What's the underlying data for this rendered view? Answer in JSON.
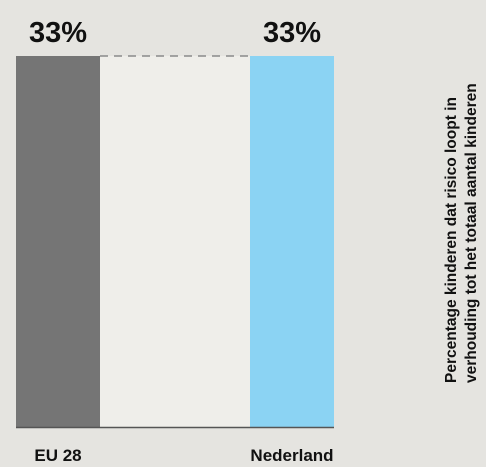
{
  "chart_data": {
    "type": "bar",
    "categories": [
      "EU 28",
      "Nederland"
    ],
    "values": [
      33,
      33
    ],
    "value_labels": [
      "33%",
      "33%"
    ],
    "ylabel_lines": [
      "Percentage kinderen dat risico loopt in",
      "verhouding tot het totaal aantal kinderen"
    ],
    "ylim": [
      0,
      33
    ],
    "grid": false,
    "connector": "dashed",
    "colors": {
      "background": "#e5e4e0",
      "plot_area": "#efeeea",
      "bars": [
        "#757575",
        "#8bd3f3"
      ],
      "connector": "#8a8a8a",
      "baseline": "#555555"
    }
  }
}
